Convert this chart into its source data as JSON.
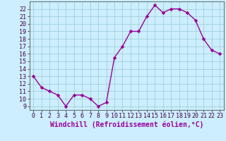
{
  "x": [
    0,
    1,
    2,
    3,
    4,
    5,
    6,
    7,
    8,
    9,
    10,
    11,
    12,
    13,
    14,
    15,
    16,
    17,
    18,
    19,
    20,
    21,
    22,
    23
  ],
  "y": [
    13,
    11.5,
    11,
    10.5,
    9,
    10.5,
    10.5,
    10,
    9,
    9.5,
    15.5,
    17,
    19,
    19,
    21,
    22.5,
    21.5,
    22,
    22,
    21.5,
    20.5,
    18,
    16.5,
    16
  ],
  "line_color": "#990099",
  "marker_color": "#990099",
  "bg_color": "#cceeff",
  "grid_color": "#99cccc",
  "xlabel": "Windchill (Refroidissement éolien,°C)",
  "xlim": [
    -0.5,
    23.5
  ],
  "ylim": [
    8.5,
    23.0
  ],
  "yticks": [
    9,
    10,
    11,
    12,
    13,
    14,
    15,
    16,
    17,
    18,
    19,
    20,
    21,
    22
  ],
  "xticks": [
    0,
    1,
    2,
    3,
    4,
    5,
    6,
    7,
    8,
    9,
    10,
    11,
    12,
    13,
    14,
    15,
    16,
    17,
    18,
    19,
    20,
    21,
    22,
    23
  ],
  "xlabel_fontsize": 7,
  "tick_fontsize": 6,
  "line_width": 1.0,
  "marker_size": 2.5
}
